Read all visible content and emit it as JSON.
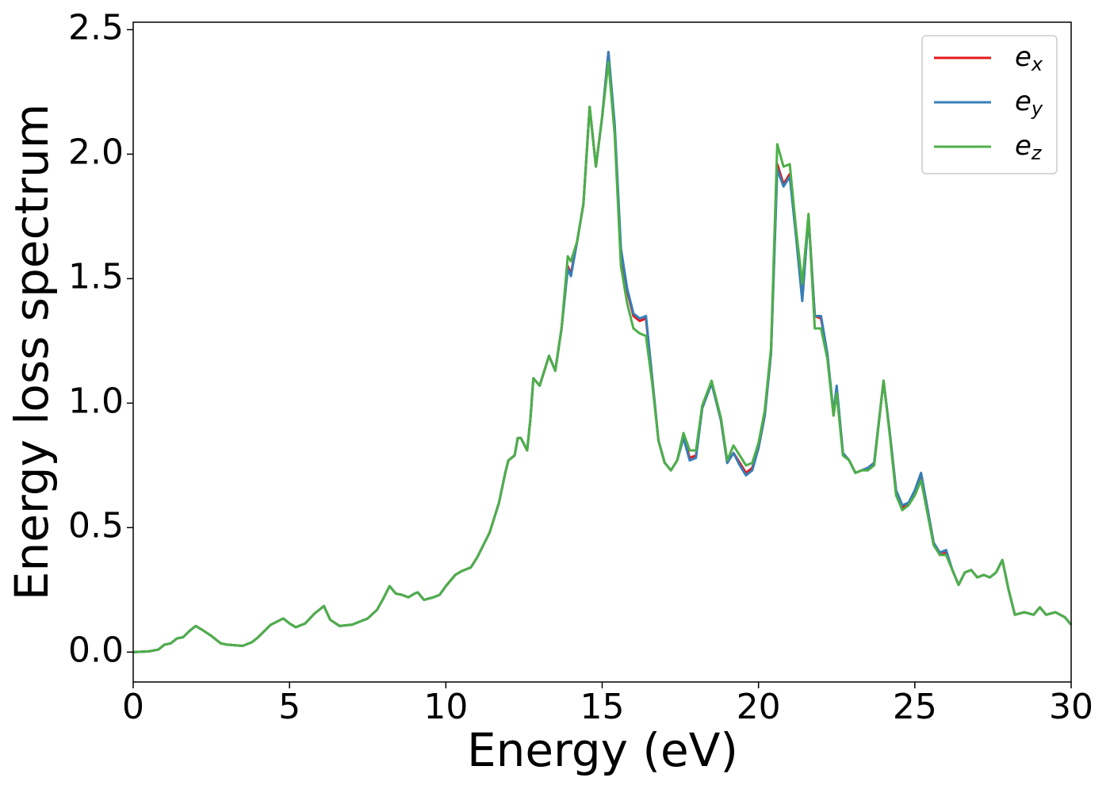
{
  "chart_data": {
    "type": "line",
    "xlabel": "Energy (eV)",
    "ylabel": "Energy loss spectrum",
    "x": [
      0,
      0.5,
      0.8,
      1.0,
      1.2,
      1.4,
      1.6,
      1.8,
      2.0,
      2.2,
      2.5,
      2.8,
      3.0,
      3.5,
      3.8,
      4.0,
      4.4,
      4.8,
      5.0,
      5.2,
      5.5,
      5.8,
      6.1,
      6.3,
      6.6,
      7.0,
      7.5,
      7.8,
      8.0,
      8.2,
      8.4,
      8.6,
      8.8,
      9.0,
      9.1,
      9.3,
      9.6,
      9.8,
      10.0,
      10.3,
      10.5,
      10.8,
      11.0,
      11.2,
      11.4,
      11.7,
      11.9,
      12.0,
      12.2,
      12.3,
      12.4,
      12.6,
      12.7,
      12.8,
      13.0,
      13.2,
      13.3,
      13.5,
      13.7,
      13.9,
      14.0,
      14.2,
      14.4,
      14.6,
      14.8,
      15.0,
      15.2,
      15.4,
      15.6,
      15.8,
      16.0,
      16.2,
      16.4,
      16.6,
      16.8,
      17.0,
      17.2,
      17.4,
      17.6,
      17.8,
      18.0,
      18.2,
      18.5,
      18.8,
      19.0,
      19.2,
      19.4,
      19.6,
      19.8,
      20.0,
      20.2,
      20.4,
      20.6,
      20.8,
      21.0,
      21.2,
      21.4,
      21.6,
      21.8,
      22.0,
      22.2,
      22.4,
      22.5,
      22.7,
      22.9,
      23.1,
      23.3,
      23.5,
      23.7,
      24.0,
      24.2,
      24.4,
      24.6,
      24.8,
      25.0,
      25.2,
      25.4,
      25.6,
      25.8,
      26.0,
      26.2,
      26.4,
      26.6,
      26.8,
      27.0,
      27.2,
      27.4,
      27.6,
      27.8,
      28.0,
      28.2,
      28.5,
      28.8,
      29.0,
      29.2,
      29.5,
      29.8,
      30.0
    ],
    "series": [
      {
        "name": "e_x",
        "color": "#e41a1c",
        "values": [
          0,
          0.003,
          0.01,
          0.03,
          0.035,
          0.055,
          0.06,
          0.085,
          0.105,
          0.09,
          0.065,
          0.035,
          0.03,
          0.025,
          0.04,
          0.06,
          0.11,
          0.135,
          0.115,
          0.1,
          0.115,
          0.155,
          0.185,
          0.13,
          0.105,
          0.11,
          0.135,
          0.17,
          0.215,
          0.265,
          0.235,
          0.23,
          0.22,
          0.235,
          0.24,
          0.21,
          0.22,
          0.23,
          0.265,
          0.31,
          0.325,
          0.34,
          0.38,
          0.43,
          0.48,
          0.6,
          0.72,
          0.77,
          0.79,
          0.86,
          0.86,
          0.81,
          0.93,
          1.1,
          1.07,
          1.15,
          1.19,
          1.13,
          1.3,
          1.55,
          1.52,
          1.65,
          1.8,
          2.19,
          1.95,
          2.15,
          2.41,
          2.1,
          1.6,
          1.45,
          1.35,
          1.33,
          1.34,
          1.1,
          0.85,
          0.76,
          0.73,
          0.77,
          0.87,
          0.78,
          0.79,
          0.98,
          1.08,
          0.93,
          0.76,
          0.8,
          0.76,
          0.72,
          0.74,
          0.82,
          0.95,
          1.2,
          1.96,
          1.88,
          1.92,
          1.68,
          1.42,
          1.75,
          1.35,
          1.34,
          1.2,
          0.95,
          1.06,
          0.8,
          0.77,
          0.72,
          0.73,
          0.74,
          0.76,
          1.09,
          0.88,
          0.65,
          0.58,
          0.6,
          0.64,
          0.71,
          0.58,
          0.44,
          0.39,
          0.4,
          0.33,
          0.27,
          0.32,
          0.33,
          0.3,
          0.31,
          0.3,
          0.32,
          0.37,
          0.25,
          0.15,
          0.16,
          0.15,
          0.18,
          0.15,
          0.16,
          0.14,
          0.11
        ]
      },
      {
        "name": "e_y",
        "color": "#377eb8",
        "values": [
          0,
          0.003,
          0.01,
          0.03,
          0.035,
          0.055,
          0.06,
          0.085,
          0.105,
          0.09,
          0.065,
          0.035,
          0.03,
          0.025,
          0.04,
          0.06,
          0.11,
          0.135,
          0.115,
          0.1,
          0.115,
          0.155,
          0.185,
          0.13,
          0.105,
          0.11,
          0.135,
          0.17,
          0.215,
          0.265,
          0.235,
          0.23,
          0.22,
          0.235,
          0.24,
          0.21,
          0.22,
          0.23,
          0.265,
          0.31,
          0.325,
          0.34,
          0.38,
          0.43,
          0.48,
          0.6,
          0.72,
          0.77,
          0.79,
          0.86,
          0.86,
          0.81,
          0.93,
          1.1,
          1.07,
          1.15,
          1.19,
          1.13,
          1.3,
          1.54,
          1.51,
          1.65,
          1.8,
          2.19,
          1.95,
          2.15,
          2.41,
          2.12,
          1.62,
          1.46,
          1.36,
          1.34,
          1.35,
          1.1,
          0.85,
          0.76,
          0.73,
          0.77,
          0.86,
          0.77,
          0.78,
          0.98,
          1.08,
          0.93,
          0.76,
          0.8,
          0.75,
          0.71,
          0.73,
          0.82,
          0.95,
          1.2,
          1.94,
          1.87,
          1.91,
          1.67,
          1.41,
          1.75,
          1.35,
          1.35,
          1.2,
          0.96,
          1.07,
          0.8,
          0.77,
          0.72,
          0.73,
          0.74,
          0.76,
          1.09,
          0.88,
          0.65,
          0.59,
          0.6,
          0.65,
          0.72,
          0.58,
          0.44,
          0.4,
          0.41,
          0.33,
          0.27,
          0.32,
          0.33,
          0.3,
          0.31,
          0.3,
          0.32,
          0.37,
          0.25,
          0.15,
          0.16,
          0.15,
          0.18,
          0.15,
          0.16,
          0.14,
          0.11
        ]
      },
      {
        "name": "e_z",
        "color": "#4daf4a",
        "values": [
          0,
          0.003,
          0.01,
          0.03,
          0.035,
          0.055,
          0.06,
          0.085,
          0.105,
          0.09,
          0.065,
          0.035,
          0.03,
          0.025,
          0.04,
          0.06,
          0.11,
          0.135,
          0.115,
          0.1,
          0.115,
          0.155,
          0.185,
          0.13,
          0.105,
          0.11,
          0.135,
          0.17,
          0.215,
          0.265,
          0.235,
          0.23,
          0.22,
          0.235,
          0.24,
          0.21,
          0.22,
          0.23,
          0.265,
          0.31,
          0.325,
          0.34,
          0.38,
          0.43,
          0.48,
          0.6,
          0.72,
          0.77,
          0.79,
          0.86,
          0.86,
          0.81,
          0.93,
          1.1,
          1.07,
          1.15,
          1.19,
          1.13,
          1.3,
          1.59,
          1.57,
          1.65,
          1.8,
          2.19,
          1.95,
          2.15,
          2.37,
          2.08,
          1.55,
          1.4,
          1.3,
          1.28,
          1.27,
          1.08,
          0.85,
          0.76,
          0.73,
          0.77,
          0.88,
          0.81,
          0.81,
          0.99,
          1.09,
          0.94,
          0.77,
          0.83,
          0.79,
          0.75,
          0.76,
          0.84,
          0.97,
          1.22,
          2.04,
          1.95,
          1.96,
          1.7,
          1.48,
          1.76,
          1.3,
          1.3,
          1.18,
          0.95,
          1.04,
          0.79,
          0.77,
          0.72,
          0.73,
          0.73,
          0.75,
          1.09,
          0.87,
          0.63,
          0.57,
          0.59,
          0.63,
          0.69,
          0.56,
          0.43,
          0.39,
          0.39,
          0.33,
          0.27,
          0.32,
          0.33,
          0.3,
          0.31,
          0.3,
          0.32,
          0.37,
          0.25,
          0.15,
          0.16,
          0.15,
          0.18,
          0.15,
          0.16,
          0.14,
          0.11
        ]
      }
    ],
    "xlim": [
      0,
      30
    ],
    "xticks": [
      0,
      5,
      10,
      15,
      20,
      25,
      30
    ],
    "ylim": [
      -0.12,
      2.53
    ],
    "yticks": [
      {
        "value": 0,
        "label": "0.0"
      },
      0.5,
      {
        "value": 1,
        "label": "1.0"
      },
      1.5,
      {
        "value": 2,
        "label": "2.0"
      },
      2.5
    ],
    "grid": false,
    "legend": "upper right"
  }
}
